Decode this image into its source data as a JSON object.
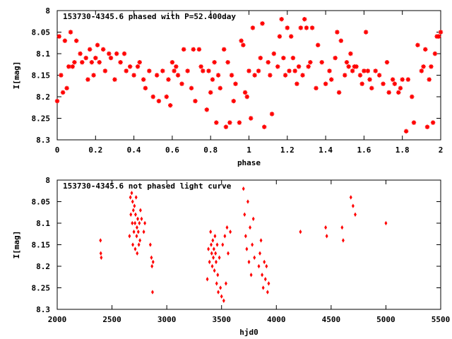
{
  "colors": {
    "points": "#ff0000",
    "axes": "#000000",
    "background": "#ffffff"
  },
  "chart_data": [
    {
      "type": "scatter",
      "title": "153730-4345.6 phased with P=52.400day",
      "xlabel": "phase",
      "ylabel": "I[mag]",
      "xlim": [
        0,
        2
      ],
      "ylim": [
        8.3,
        8.0
      ],
      "y_inverted": true,
      "xticks": [
        "0",
        "0.2",
        "0.4",
        "0.6",
        "0.8",
        "1",
        "1.2",
        "1.4",
        "1.6",
        "1.8",
        "2"
      ],
      "yticks": [
        "8",
        "8.05",
        "8.1",
        "8.15",
        "8.2",
        "8.25",
        "8.3"
      ],
      "marker": "star",
      "grid": false,
      "x": [
        0.0,
        0.01,
        0.02,
        0.03,
        0.04,
        0.05,
        0.06,
        0.07,
        0.08,
        0.09,
        0.1,
        0.12,
        0.13,
        0.15,
        0.16,
        0.17,
        0.18,
        0.19,
        0.2,
        0.21,
        0.22,
        0.24,
        0.25,
        0.27,
        0.28,
        0.3,
        0.31,
        0.33,
        0.35,
        0.36,
        0.38,
        0.4,
        0.42,
        0.43,
        0.45,
        0.46,
        0.48,
        0.5,
        0.52,
        0.53,
        0.55,
        0.57,
        0.58,
        0.59,
        0.6,
        0.61,
        0.62,
        0.63,
        0.65,
        0.66,
        0.68,
        0.7,
        0.71,
        0.72,
        0.74,
        0.75,
        0.76,
        0.78,
        0.79,
        0.8,
        0.81,
        0.82,
        0.83,
        0.84,
        0.85,
        0.87,
        0.88,
        0.89,
        0.9,
        0.91,
        0.92,
        0.93,
        0.95,
        0.96,
        0.97,
        0.98,
        0.99,
        1.0,
        1.01,
        1.02,
        1.03,
        1.05,
        1.06,
        1.07,
        1.08,
        1.1,
        1.11,
        1.12,
        1.13,
        1.15,
        1.16,
        1.17,
        1.18,
        1.19,
        1.2,
        1.21,
        1.22,
        1.23,
        1.24,
        1.25,
        1.26,
        1.27,
        1.28,
        1.29,
        1.3,
        1.31,
        1.32,
        1.33,
        1.35,
        1.36,
        1.38,
        1.4,
        1.42,
        1.43,
        1.45,
        1.46,
        1.47,
        1.48,
        1.5,
        1.51,
        1.52,
        1.53,
        1.54,
        1.55,
        1.56,
        1.58,
        1.59,
        1.6,
        1.61,
        1.62,
        1.63,
        1.64,
        1.66,
        1.68,
        1.7,
        1.72,
        1.73,
        1.75,
        1.76,
        1.78,
        1.79,
        1.8,
        1.82,
        1.83,
        1.85,
        1.86,
        1.88,
        1.9,
        1.91,
        1.92,
        1.93,
        1.94,
        1.95,
        1.96,
        1.97,
        1.98,
        1.99,
        2.0
      ],
      "y": [
        8.21,
        8.06,
        8.15,
        8.19,
        8.07,
        8.18,
        8.13,
        8.05,
        8.13,
        8.12,
        8.07,
        8.1,
        8.12,
        8.11,
        8.16,
        8.09,
        8.12,
        8.15,
        8.11,
        8.08,
        8.12,
        8.09,
        8.14,
        8.1,
        8.11,
        8.16,
        8.1,
        8.12,
        8.1,
        8.14,
        8.13,
        8.15,
        8.13,
        8.12,
        8.16,
        8.18,
        8.14,
        8.2,
        8.15,
        8.21,
        8.14,
        8.2,
        8.16,
        8.22,
        8.12,
        8.14,
        8.13,
        8.15,
        8.17,
        8.09,
        8.14,
        8.18,
        8.09,
        8.21,
        8.09,
        8.13,
        8.14,
        8.23,
        8.14,
        8.19,
        8.16,
        8.12,
        8.26,
        8.15,
        8.18,
        8.09,
        8.27,
        8.12,
        8.26,
        8.15,
        8.21,
        8.17,
        8.26,
        8.07,
        8.08,
        8.19,
        8.2,
        8.14,
        8.25,
        8.04,
        8.15,
        8.14,
        8.11,
        8.03,
        8.27,
        8.12,
        8.15,
        8.24,
        8.1,
        8.13,
        8.06,
        8.02,
        8.11,
        8.15,
        8.04,
        8.14,
        8.06,
        8.11,
        8.14,
        8.17,
        8.13,
        8.04,
        8.15,
        8.02,
        8.04,
        8.13,
        8.12,
        8.04,
        8.18,
        8.08,
        8.12,
        8.17,
        8.14,
        8.16,
        8.11,
        8.05,
        8.19,
        8.07,
        8.15,
        8.12,
        8.13,
        8.1,
        8.14,
        8.13,
        8.13,
        8.15,
        8.17,
        8.14,
        8.05,
        8.14,
        8.16,
        8.18,
        8.14,
        8.15,
        8.17,
        8.12,
        8.19,
        8.16,
        8.17,
        8.19,
        8.18,
        8.16,
        8.28,
        8.16,
        8.2,
        8.26,
        8.08,
        8.14,
        8.13,
        8.09,
        8.27,
        8.16,
        8.13,
        8.26,
        8.1,
        8.06,
        8.06,
        8.05
      ],
      "xlabel_position": "bottom"
    },
    {
      "type": "scatter",
      "title": "153730-4345.6 not phased light curve",
      "xlabel": "hjd0",
      "ylabel": "I[mag]",
      "xlim": [
        2000,
        5500
      ],
      "ylim": [
        8.3,
        8.0
      ],
      "y_inverted": true,
      "xticks": [
        "2000",
        "2500",
        "3000",
        "3500",
        "4000",
        "4500",
        "5000",
        "5500"
      ],
      "yticks": [
        "8",
        "8.05",
        "8.1",
        "8.15",
        "8.2",
        "8.25",
        "8.3"
      ],
      "marker": "diamond",
      "grid": false,
      "x": [
        2395,
        2398,
        2402,
        2660,
        2668,
        2672,
        2680,
        2685,
        2688,
        2690,
        2695,
        2700,
        2705,
        2710,
        2712,
        2715,
        2720,
        2725,
        2728,
        2730,
        2735,
        2740,
        2745,
        2750,
        2755,
        2760,
        2770,
        2790,
        2800,
        2850,
        2860,
        2865,
        2870,
        2875,
        3370,
        3380,
        3390,
        3400,
        3405,
        3410,
        3415,
        3420,
        3425,
        3430,
        3435,
        3440,
        3445,
        3450,
        3455,
        3460,
        3465,
        3470,
        3480,
        3490,
        3500,
        3510,
        3520,
        3530,
        3540,
        3550,
        3560,
        3580,
        3700,
        3710,
        3720,
        3730,
        3740,
        3750,
        3760,
        3770,
        3780,
        3790,
        3800,
        3840,
        3850,
        3860,
        3870,
        3880,
        3890,
        3900,
        3910,
        3920,
        3930,
        4220,
        4450,
        4460,
        4600,
        4610,
        4680,
        4700,
        4720,
        5000
      ],
      "y": [
        8.14,
        8.17,
        8.18,
        8.13,
        8.04,
        8.08,
        8.03,
        8.1,
        8.05,
        8.15,
        8.07,
        8.12,
        8.06,
        8.1,
        8.16,
        8.08,
        8.04,
        8.13,
        8.11,
        8.17,
        8.09,
        8.12,
        8.15,
        8.1,
        8.14,
        8.07,
        8.09,
        8.12,
        8.1,
        8.15,
        8.18,
        8.2,
        8.26,
        8.19,
        8.23,
        8.16,
        8.19,
        8.12,
        8.15,
        8.17,
        8.2,
        8.14,
        8.18,
        8.16,
        8.21,
        8.13,
        8.17,
        8.19,
        8.24,
        8.15,
        8.22,
        8.26,
        8.18,
        8.25,
        8.27,
        8.15,
        8.28,
        8.13,
        8.24,
        8.11,
        8.17,
        8.12,
        8.02,
        8.08,
        8.13,
        8.16,
        8.05,
        8.19,
        8.11,
        8.22,
        8.15,
        8.09,
        8.18,
        8.2,
        8.17,
        8.14,
        8.22,
        8.25,
        8.19,
        8.23,
        8.2,
        8.26,
        8.24,
        8.12,
        8.11,
        8.13,
        8.11,
        8.14,
        8.04,
        8.06,
        8.08,
        8.1
      ]
    }
  ]
}
